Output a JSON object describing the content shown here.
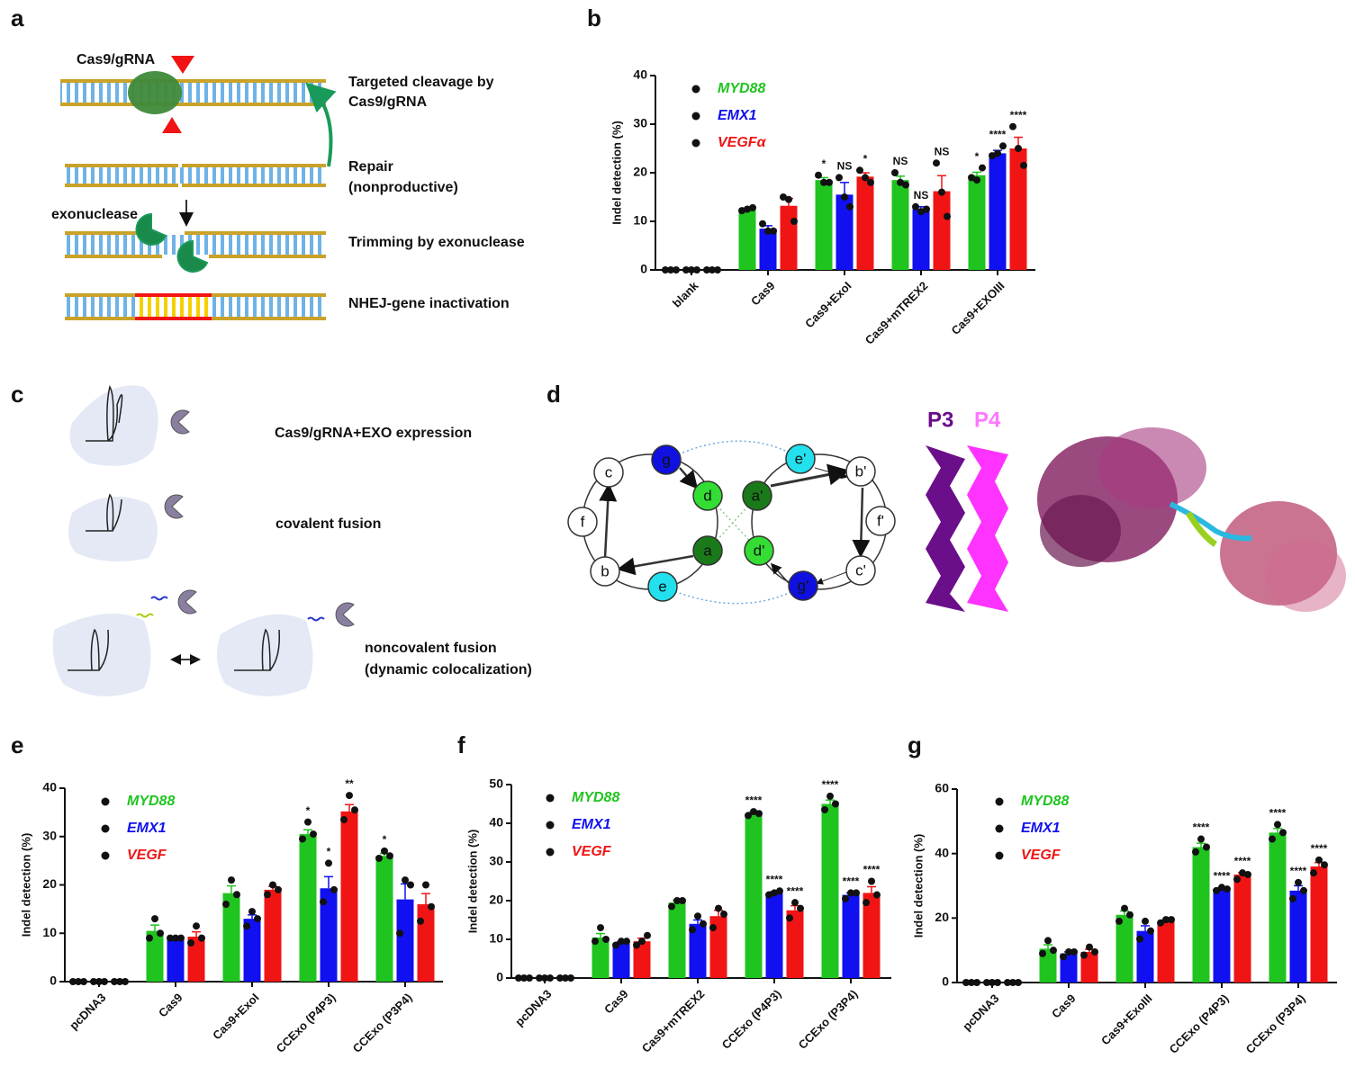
{
  "panel_labels": [
    "a",
    "b",
    "c",
    "d",
    "e",
    "f",
    "g"
  ],
  "panel_a": {
    "cas9_label": "Cas9/gRNA",
    "exonuclease_label": "exonuclease",
    "steps": [
      [
        "Targeted cleavage by",
        "Cas9/gRNA"
      ],
      [
        "Repair",
        "(nonproductive)"
      ],
      [
        "Trimming by exonuclease"
      ],
      [
        "NHEJ-gene inactivation"
      ]
    ]
  },
  "panel_c": {
    "steps": [
      [
        "Cas9/gRNA+EXO expression"
      ],
      [
        "covalent fusion"
      ],
      [
        "noncovalent fusion",
        "(dynamic colocalization)"
      ]
    ]
  },
  "panel_d": {
    "wheel_left": [
      "c",
      "g",
      "d",
      "f",
      "a",
      "b",
      "e"
    ],
    "wheel_right": [
      "e'",
      "b'",
      "a'",
      "f'",
      "d'",
      "c'",
      "g'"
    ],
    "helices": [
      "P3",
      "P4"
    ]
  },
  "chart_data": [
    {
      "type": "bar",
      "ylabel": "Indel detection (%)",
      "categories": [
        "blank",
        "Cas9",
        "Cas9+ExoI",
        "Cas9+mTREX2",
        "Cas9+EXOIII"
      ],
      "ylim": [
        0,
        40
      ],
      "yticks": [
        0,
        10,
        20,
        30,
        40
      ],
      "series": [
        {
          "name": "MYD88",
          "color": "#1fc41f",
          "values": [
            0,
            12.5,
            18.5,
            18.5,
            19.5
          ],
          "errors": [
            0,
            0.2,
            0.5,
            0.8,
            0.6
          ],
          "points": [
            [
              0,
              0,
              0
            ],
            [
              12.2,
              12.5,
              12.8
            ],
            [
              19.5,
              18,
              18
            ],
            [
              20,
              18,
              17.5
            ],
            [
              19,
              18.5,
              21
            ]
          ],
          "annotations": [
            null,
            null,
            "*",
            "NS",
            "*"
          ]
        },
        {
          "name": "EMX1",
          "color": "#1010f0",
          "values": [
            0,
            8.5,
            15.5,
            12.5,
            24
          ],
          "errors": [
            0,
            0.6,
            2.5,
            0.5,
            0.6
          ],
          "points": [
            [
              0,
              0,
              0
            ],
            [
              9.5,
              8,
              8
            ],
            [
              19,
              15,
              13
            ],
            [
              13,
              12,
              12.5
            ],
            [
              23.5,
              24,
              25.5
            ]
          ],
          "annotations": [
            null,
            null,
            "NS",
            "NS",
            "****"
          ]
        },
        {
          "name": "VEGFα",
          "color": "#f01414",
          "values": [
            0,
            13.2,
            19.2,
            16.2,
            25
          ],
          "errors": [
            0,
            1.5,
            0.8,
            3.2,
            2.3
          ],
          "points": [
            [
              0,
              0,
              0
            ],
            [
              15,
              14.5,
              10
            ],
            [
              20.5,
              19,
              18
            ],
            [
              22,
              16,
              11
            ],
            [
              29.5,
              25,
              21.5
            ]
          ],
          "annotations": [
            null,
            null,
            "*",
            "NS",
            "****"
          ]
        }
      ]
    },
    {
      "type": "bar",
      "ylabel": "Indel detection (%)",
      "categories": [
        "pcDNA3",
        "Cas9",
        "Cas9+ExoI",
        "CCExo (P4P3)",
        "CCExo (P3P4)"
      ],
      "ylim": [
        0,
        40
      ],
      "yticks": [
        0,
        10,
        20,
        30,
        40
      ],
      "series": [
        {
          "name": "MYD88",
          "color": "#1fc41f",
          "values": [
            0,
            10.5,
            18.3,
            30.5,
            26
          ],
          "errors": [
            0,
            1.2,
            1.5,
            0.9,
            0.5
          ],
          "points": [
            [
              0,
              0,
              0
            ],
            [
              9,
              13,
              10
            ],
            [
              16,
              21,
              18
            ],
            [
              29.5,
              33,
              30.5
            ],
            [
              25.5,
              27,
              26
            ]
          ],
          "annotations": [
            null,
            null,
            null,
            "*",
            "*"
          ]
        },
        {
          "name": "EMX1",
          "color": "#1010f0",
          "values": [
            0,
            9,
            13,
            19.3,
            17
          ],
          "errors": [
            0,
            0.1,
            0.8,
            2.4,
            3.2
          ],
          "points": [
            [
              0,
              0,
              0
            ],
            [
              9,
              9,
              9
            ],
            [
              11.5,
              14.5,
              13
            ],
            [
              16.5,
              24.5,
              19
            ],
            [
              10,
              21,
              20
            ]
          ],
          "annotations": [
            null,
            null,
            null,
            "*",
            null
          ]
        },
        {
          "name": "VEGF",
          "color": "#f01414",
          "values": [
            0,
            9.3,
            19,
            35.2,
            16
          ],
          "errors": [
            0,
            1,
            0.7,
            1.4,
            2.2
          ],
          "points": [
            [
              0,
              0,
              0
            ],
            [
              8,
              11.5,
              9
            ],
            [
              18,
              20,
              19
            ],
            [
              33.5,
              38.5,
              35.5
            ],
            [
              12.5,
              20,
              15.5
            ]
          ],
          "annotations": [
            null,
            null,
            null,
            "**",
            null
          ]
        }
      ]
    },
    {
      "type": "bar",
      "ylabel": "Indel detection (%)",
      "categories": [
        "pcDNA3",
        "Cas9",
        "Cas9+mTREX2",
        "CCExo (P4P3)",
        "CCExo (P3P4)"
      ],
      "ylim": [
        0,
        50
      ],
      "yticks": [
        0,
        10,
        20,
        30,
        40,
        50
      ],
      "series": [
        {
          "name": "MYD88",
          "color": "#1fc41f",
          "values": [
            0,
            10.5,
            19.5,
            42.5,
            45
          ],
          "errors": [
            0,
            1,
            0.6,
            0.4,
            1
          ],
          "points": [
            [
              0,
              0,
              0
            ],
            [
              9.5,
              13,
              10
            ],
            [
              18.5,
              20,
              20
            ],
            [
              42,
              43,
              42.5
            ],
            [
              43.5,
              47,
              45
            ]
          ],
          "annotations": [
            null,
            null,
            null,
            "****",
            "****"
          ]
        },
        {
          "name": "EMX1",
          "color": "#1010f0",
          "values": [
            0,
            9,
            14,
            22,
            21.5
          ],
          "errors": [
            0,
            0.4,
            1,
            0.3,
            0.5
          ],
          "points": [
            [
              0,
              0,
              0
            ],
            [
              8.5,
              9.5,
              9.5
            ],
            [
              12.5,
              16,
              14
            ],
            [
              21.5,
              22,
              22.5
            ],
            [
              20.5,
              22,
              22
            ]
          ],
          "annotations": [
            null,
            null,
            null,
            "****",
            "****"
          ]
        },
        {
          "name": "VEGF",
          "color": "#f01414",
          "values": [
            0,
            9.5,
            16,
            17.5,
            22
          ],
          "errors": [
            0,
            0.8,
            1.5,
            1.2,
            1.6
          ],
          "points": [
            [
              0,
              0,
              0
            ],
            [
              8.5,
              9.5,
              11
            ],
            [
              13,
              18,
              16.5
            ],
            [
              15.5,
              19.5,
              18
            ],
            [
              19.5,
              25,
              21.5
            ]
          ],
          "annotations": [
            null,
            null,
            null,
            "****",
            "****"
          ]
        }
      ]
    },
    {
      "type": "bar",
      "ylabel": "Indel detection (%)",
      "categories": [
        "pcDNA3",
        "Cas9",
        "Cas9+ExoIII",
        "CCExo (P4P3)",
        "CCExo (P3P4)"
      ],
      "ylim": [
        0,
        60
      ],
      "yticks": [
        0,
        20,
        40,
        60
      ],
      "series": [
        {
          "name": "MYD88",
          "color": "#1fc41f",
          "values": [
            0,
            10.5,
            21,
            42,
            46.5
          ],
          "errors": [
            0,
            1.2,
            1.2,
            1.2,
            1.3
          ],
          "points": [
            [
              0,
              0,
              0
            ],
            [
              9,
              13,
              10
            ],
            [
              19,
              23,
              21
            ],
            [
              40.5,
              44.5,
              42
            ],
            [
              44.5,
              49,
              46.5
            ]
          ],
          "annotations": [
            null,
            null,
            null,
            "****",
            "****"
          ]
        },
        {
          "name": "EMX1",
          "color": "#1010f0",
          "values": [
            0,
            9,
            16,
            29,
            28.5
          ],
          "errors": [
            0,
            0.5,
            1.6,
            0.3,
            1.5
          ],
          "points": [
            [
              0,
              0,
              0
            ],
            [
              8,
              9.5,
              9.5
            ],
            [
              13.5,
              19,
              16
            ],
            [
              28.5,
              29.5,
              29
            ],
            [
              26,
              31,
              28.5
            ]
          ],
          "annotations": [
            null,
            null,
            null,
            "****",
            "****"
          ]
        },
        {
          "name": "VEGF",
          "color": "#f01414",
          "values": [
            0,
            9.5,
            19,
            33.5,
            36
          ],
          "errors": [
            0,
            0.8,
            0.4,
            0.6,
            1.2
          ],
          "points": [
            [
              0,
              0,
              0
            ],
            [
              8.5,
              11,
              9.5
            ],
            [
              18.5,
              19.5,
              19.5
            ],
            [
              32,
              34,
              33.5
            ],
            [
              34,
              38,
              36.5
            ]
          ],
          "annotations": [
            null,
            null,
            null,
            "****",
            "****"
          ]
        }
      ]
    }
  ]
}
